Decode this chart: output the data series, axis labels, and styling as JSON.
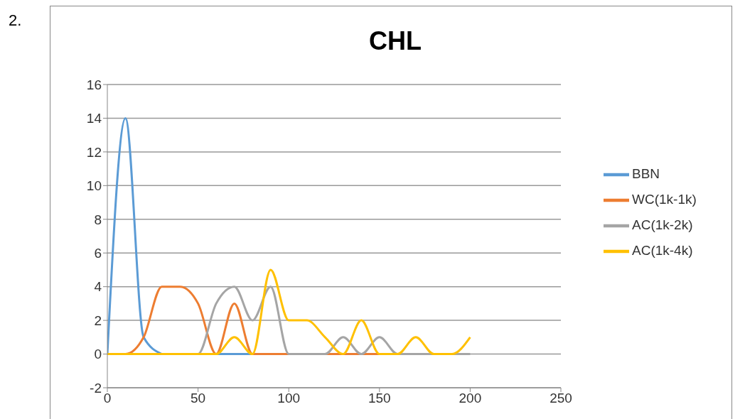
{
  "chart_data": {
    "type": "line",
    "title": "CHL",
    "annotations": [
      "2."
    ],
    "x": [
      0,
      10,
      20,
      30,
      40,
      50,
      60,
      70,
      80,
      90,
      100,
      110,
      120,
      130,
      140,
      150,
      160,
      170,
      180,
      190,
      200
    ],
    "series": [
      {
        "name": "BBN",
        "color": "#5b9bd5",
        "values": [
          0,
          14,
          1,
          0,
          null,
          null,
          0,
          0,
          0,
          null,
          null,
          null,
          null,
          null,
          null,
          null,
          null,
          null,
          null,
          null,
          null
        ]
      },
      {
        "name": "WC(1k-1k)",
        "color": "#ed7d31",
        "values": [
          0,
          0,
          1,
          4,
          4,
          3,
          0,
          3,
          0,
          0,
          0,
          0,
          0,
          0,
          0,
          0,
          0,
          null,
          null,
          null,
          null
        ]
      },
      {
        "name": "AC(1k-2k)",
        "color": "#a5a5a5",
        "values": [
          0,
          0,
          0,
          0,
          0,
          0,
          3,
          4,
          2,
          4,
          0,
          0,
          0,
          1,
          0,
          1,
          0,
          0,
          0,
          0,
          0
        ]
      },
      {
        "name": "AC(1k-4k)",
        "color": "#ffc000",
        "values": [
          0,
          0,
          0,
          0,
          0,
          0,
          0,
          1,
          0,
          5,
          2,
          2,
          1,
          0,
          2,
          0,
          0,
          1,
          0,
          0,
          1
        ]
      }
    ],
    "xlim": [
      0,
      250
    ],
    "xticks": [
      0,
      50,
      100,
      150,
      200,
      250
    ],
    "ylim": [
      -2,
      16
    ],
    "yticks": [
      -2,
      0,
      2,
      4,
      6,
      8,
      10,
      12,
      14,
      16
    ],
    "grid": "y",
    "legend": "right",
    "marker": "none",
    "line_style": "solid"
  }
}
